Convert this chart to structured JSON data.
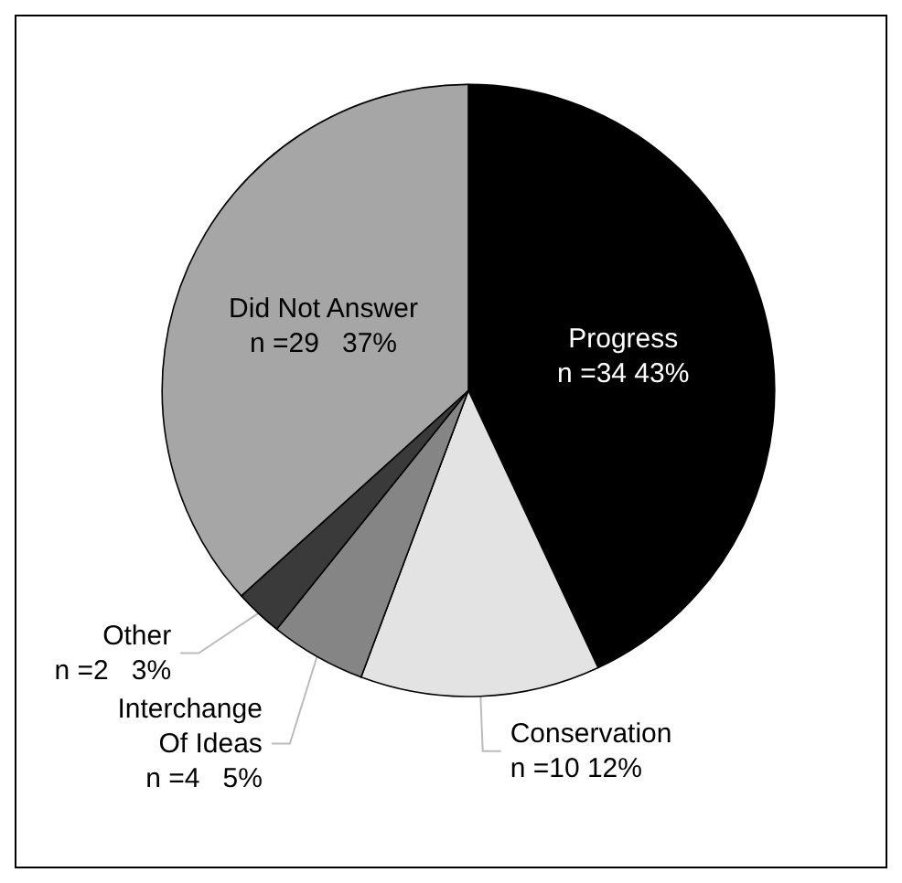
{
  "chart_data": {
    "type": "pie",
    "categories": [
      "Progress",
      "Conservation",
      "Interchange\nOf Ideas",
      "Other",
      "Did Not Answer"
    ],
    "values": [
      34,
      10,
      4,
      2,
      29
    ],
    "value_labels": [
      "n =34 43%",
      "n =10 12%",
      "n =4   5%",
      "n =2   3%",
      "n =29   37%"
    ],
    "colors": [
      "#000000",
      "#e3e3e3",
      "#858585",
      "#3a3a3a",
      "#a6a6a6"
    ]
  }
}
